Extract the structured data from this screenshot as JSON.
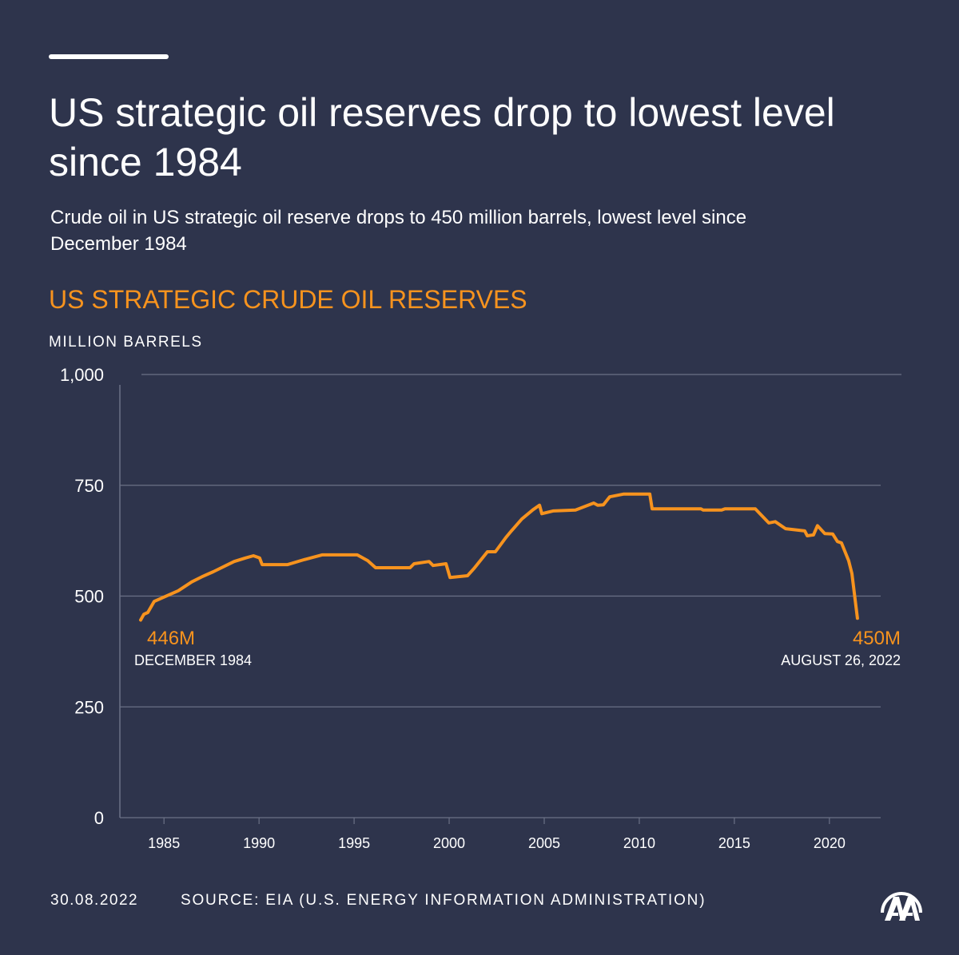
{
  "header": {
    "title": "US strategic oil reserves drop to lowest level since 1984",
    "subtitle": "Crude oil in US strategic oil reserve drops to 450 million barrels, lowest level since December 1984"
  },
  "chart_data": {
    "type": "line",
    "title": "US STRATEGIC CRUDE OIL RESERVES",
    "ylabel": "MILLION BARRELS",
    "xlabel": "",
    "ylim": [
      0,
      1000
    ],
    "yticks": [
      0,
      250,
      500,
      750,
      1000
    ],
    "ytick_labels": [
      "0",
      "250",
      "500",
      "750",
      "1,000"
    ],
    "xticks": [
      1985,
      1990,
      1995,
      2000,
      2005,
      2010,
      2015,
      2020
    ],
    "xtick_labels": [
      "1985",
      "1990",
      "1995",
      "2000",
      "2005",
      "2010",
      "2015",
      "2020"
    ],
    "grid": true,
    "color": "#f7931e",
    "x": [
      1984.95,
      1985.12,
      1985.33,
      1985.66,
      1986.93,
      1987.64,
      1988.19,
      1988.77,
      1989.87,
      1990.46,
      1990.88,
      1991.21,
      1991.34,
      1992.68,
      1993.53,
      1994.49,
      1996.34,
      1996.89,
      1997.31,
      1999.12,
      1999.33,
      2000.12,
      2000.33,
      2001.01,
      2001.22,
      2002.14,
      2002.48,
      2003.19,
      2003.61,
      2004.16,
      2004.45,
      2005.0,
      2005.59,
      2005.93,
      2006.05,
      2006.64,
      2007.82,
      2008.78,
      2008.99,
      2009.29,
      2009.62,
      2010.34,
      2011.73,
      2011.85,
      2014.42,
      2014.54,
      2015.51,
      2015.68,
      2017.28,
      2017.99,
      2018.33,
      2018.87,
      2019.88,
      2020.01,
      2020.34,
      2020.55,
      2020.93,
      2021.35,
      2021.6,
      2021.81,
      2022.19,
      2022.36,
      2022.65
    ],
    "values": [
      446,
      459,
      463,
      488,
      512,
      532,
      544,
      555,
      578,
      586,
      591,
      586,
      571,
      571,
      582,
      593,
      593,
      580,
      564,
      564,
      573,
      578,
      569,
      573,
      542,
      546,
      562,
      600,
      600,
      632,
      647,
      674,
      695,
      705,
      686,
      692,
      694,
      710,
      705,
      706,
      724,
      730,
      730,
      697,
      697,
      694,
      694,
      697,
      697,
      665,
      668,
      652,
      647,
      636,
      638,
      659,
      641,
      640,
      623,
      620,
      580,
      551,
      450
    ],
    "annotations": [
      {
        "value_label": "446M",
        "date_label": "DECEMBER 1984"
      },
      {
        "value_label": "450M",
        "date_label": "AUGUST 26, 2022"
      }
    ]
  },
  "footer": {
    "date": "30.08.2022",
    "source": "SOURCE: EIA (U.S. ENERGY INFORMATION ADMINISTRATION)",
    "logo_text": "AA"
  },
  "colors": {
    "background": "#2e344c",
    "accent": "#f7931e",
    "grid": "#6b7186"
  }
}
